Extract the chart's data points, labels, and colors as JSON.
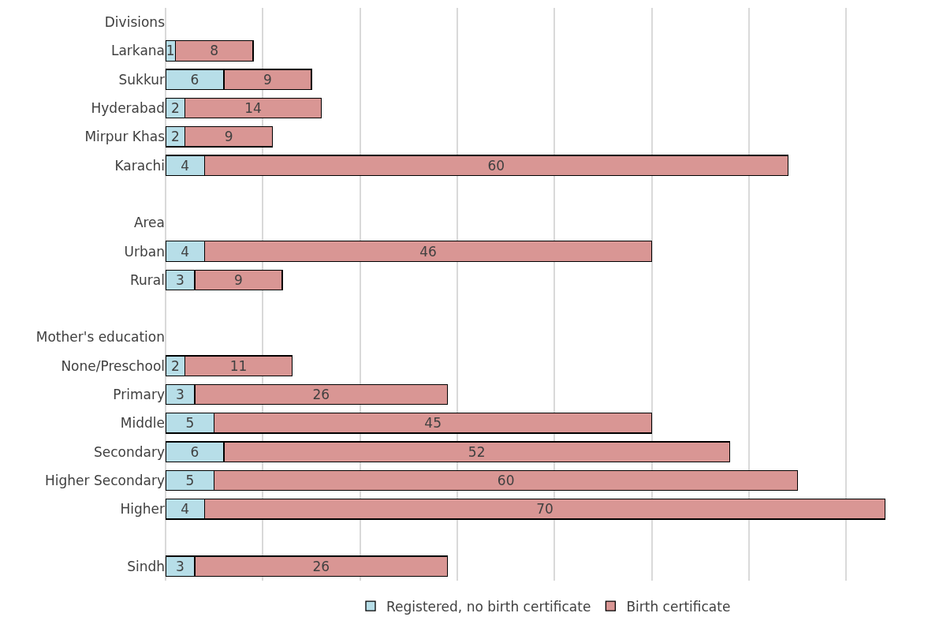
{
  "chart_data": {
    "type": "bar",
    "orientation": "horizontal",
    "stacked": true,
    "data_labels": true,
    "grid": "x",
    "legend": "bottom",
    "tick_labels": "y",
    "categories": [
      "Divisions",
      "Larkana",
      "Sukkur",
      "Hyderabad",
      "Mirpur Khas",
      "Karachi",
      null,
      "Area",
      "Urban",
      "Rural",
      null,
      "Mother's education",
      "None/Preschool",
      "Primary",
      "Middle",
      "Secondary",
      "Higher Secondary",
      "Higher",
      null,
      "Sindh"
    ],
    "series": [
      {
        "name": "Registered, no birth certificate",
        "color": "#b7dee8",
        "values": [
          null,
          1,
          6,
          2,
          2,
          4,
          null,
          null,
          4,
          3,
          null,
          null,
          2,
          3,
          5,
          6,
          5,
          4,
          null,
          3
        ]
      },
      {
        "name": "Birth certificate",
        "color": "#d99694",
        "values": [
          null,
          8,
          9,
          14,
          9,
          60,
          null,
          null,
          46,
          9,
          null,
          null,
          11,
          26,
          45,
          52,
          60,
          70,
          null,
          26
        ]
      }
    ],
    "xlim": [
      0,
      78
    ]
  }
}
